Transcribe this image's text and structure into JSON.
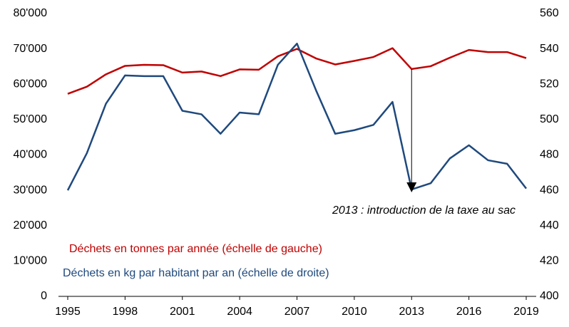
{
  "chart_data": {
    "type": "line",
    "x": [
      1995,
      1996,
      1997,
      1998,
      1999,
      2000,
      2001,
      2002,
      2003,
      2004,
      2005,
      2006,
      2007,
      2008,
      2009,
      2010,
      2011,
      2012,
      2013,
      2014,
      2015,
      2016,
      2017,
      2018,
      2019
    ],
    "series": [
      {
        "name": "Déchets en tonnes par année (échelle de gauche)",
        "color": "#c00000",
        "values": [
          57300,
          59300,
          62800,
          65200,
          65500,
          65400,
          63300,
          63600,
          62300,
          64200,
          64100,
          67900,
          70000,
          67300,
          65600,
          66600,
          67700,
          70200,
          64300,
          65100,
          67500,
          69700,
          69100,
          69100,
          67400
        ]
      },
      {
        "name": "Déchets en kg par habitant par an (échelle de droite)",
        "color": "#1f497d",
        "axis": "y2",
        "values": [
          460,
          481,
          509,
          525,
          524.6,
          524.6,
          505,
          503,
          492,
          504,
          503,
          531,
          543,
          516.5,
          492,
          494,
          497,
          510,
          460.5,
          464,
          478,
          485.5,
          477,
          475,
          461
        ]
      }
    ],
    "xlim": [
      1995,
      2019
    ],
    "xticks": [
      1995,
      1998,
      2001,
      2004,
      2007,
      2010,
      2013,
      2016,
      2019
    ],
    "ylim": [
      0,
      80000
    ],
    "yticks": [
      0,
      {
        "value": 10000,
        "label": "10'000"
      },
      {
        "value": 20000,
        "label": "20'000"
      },
      {
        "value": 30000,
        "label": "30'000"
      },
      {
        "value": 40000,
        "label": "40'000"
      },
      {
        "value": 50000,
        "label": "50'000"
      },
      {
        "value": 60000,
        "label": "60'000"
      },
      {
        "value": 70000,
        "label": "70'000"
      },
      {
        "value": 80000,
        "label": "80'000"
      }
    ],
    "y2lim": [
      400,
      560
    ],
    "y2ticks": [
      400,
      420,
      440,
      460,
      480,
      500,
      520,
      540,
      560
    ],
    "annotation": {
      "text": "2013 : introduction de la taxe au sac",
      "x": 2013
    }
  }
}
